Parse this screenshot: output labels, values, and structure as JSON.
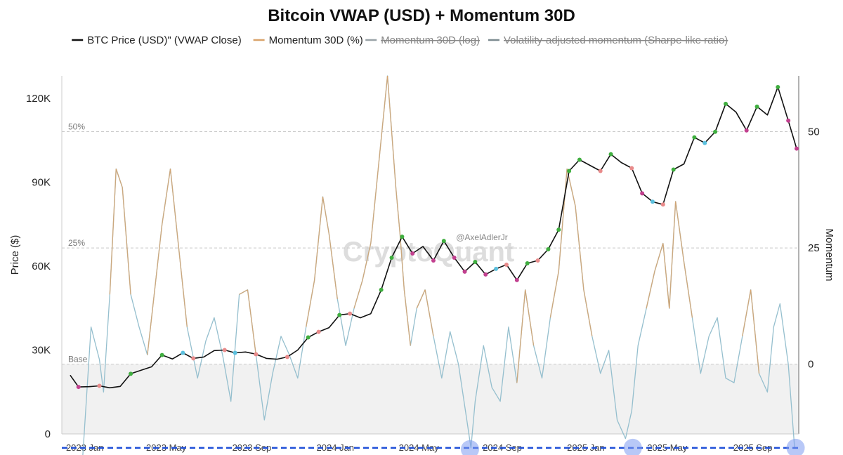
{
  "chart_data": {
    "type": "line",
    "title": "Bitcoin VWAP (USD) + Momentum 30D",
    "legend": [
      {
        "label": "BTC Price (USD)\" (VWAP Close)",
        "color": "#111111",
        "active": true
      },
      {
        "label": "Momentum 30D (%)",
        "color": "#d9a36b",
        "active": true
      },
      {
        "label": "Momentum 30D (log)",
        "color": "#9aa3a8",
        "active": false
      },
      {
        "label": "Volatility-adjusted momentum (Sharpe-like ratio)",
        "color": "#7d8b90",
        "active": false
      }
    ],
    "ylabel_left": "Price ($)",
    "ylabel_right": "Momentum",
    "ylim_left": [
      0,
      128000
    ],
    "ylim_right": [
      -15,
      62
    ],
    "left_ticks": [
      0,
      30000,
      60000,
      90000,
      120000
    ],
    "left_tick_labels": [
      "0",
      "30K",
      "60K",
      "90K",
      "120K"
    ],
    "right_ticks": [
      0,
      25,
      50
    ],
    "right_tick_labels": [
      "0",
      "25",
      "50"
    ],
    "x_ticks": [
      1.1,
      5.0,
      9.1,
      13.1,
      17.1,
      21.1,
      25.1,
      29.0,
      33.1
    ],
    "x_tick_labels": [
      "2023 Jan",
      "2023 May",
      "2023 Sep",
      "2024 Jan",
      "2024 May",
      "2024 Sep",
      "2025 Jan",
      "2025 May",
      "2025 Sep"
    ],
    "x_range": [
      0,
      35.3
    ],
    "reference_lines": [
      {
        "label": "50%",
        "value": 50
      },
      {
        "label": "25%",
        "value": 25
      },
      {
        "label": "Base",
        "value": 0
      }
    ],
    "blue_threshold": -18,
    "highlight_markers": [
      {
        "month": 19.55,
        "value": -18.3
      },
      {
        "month": 27.35,
        "value": -18.0
      },
      {
        "month": 35.15,
        "value": -18.0
      }
    ],
    "series": [
      {
        "name": "BTC Price (USD)",
        "axis": "left",
        "color": "#111111",
        "x": [
          0.4,
          0.8,
          1.3,
          1.8,
          2.3,
          2.8,
          3.3,
          3.8,
          4.3,
          4.8,
          5.3,
          5.8,
          6.3,
          6.8,
          7.3,
          7.8,
          8.3,
          8.8,
          9.3,
          9.8,
          10.3,
          10.8,
          11.3,
          11.8,
          12.3,
          12.8,
          13.3,
          13.8,
          14.3,
          14.8,
          15.3,
          15.8,
          16.3,
          16.8,
          17.3,
          17.8,
          18.3,
          18.8,
          19.3,
          19.8,
          20.3,
          20.8,
          21.3,
          21.8,
          22.3,
          22.8,
          23.3,
          23.8,
          24.3,
          24.8,
          25.3,
          25.8,
          26.3,
          26.8,
          27.3,
          27.8,
          28.3,
          28.8,
          29.3,
          29.8,
          30.3,
          30.8,
          31.3,
          31.8,
          32.3,
          32.8,
          33.3,
          33.8,
          34.3,
          34.8,
          35.2
        ],
        "y": [
          21000,
          16800,
          16900,
          17200,
          16500,
          17000,
          21500,
          22800,
          24000,
          28200,
          26800,
          29000,
          27000,
          27500,
          29800,
          30000,
          29000,
          29300,
          28500,
          27000,
          26700,
          27500,
          30000,
          34500,
          36500,
          38000,
          42500,
          43000,
          41500,
          43000,
          51500,
          63000,
          70500,
          64500,
          67000,
          62000,
          69000,
          63000,
          58000,
          61500,
          57000,
          59000,
          60500,
          55000,
          61000,
          62000,
          66000,
          73000,
          94000,
          98000,
          96000,
          94000,
          100000,
          97000,
          95000,
          86000,
          83000,
          82000,
          94500,
          96500,
          106000,
          104000,
          108000,
          118000,
          115000,
          108500,
          117000,
          114000,
          124000,
          112000,
          102000
        ]
      },
      {
        "name": "Momentum 30D (%)",
        "axis": "right",
        "color": "#d9a36b",
        "x": [
          1.0,
          1.4,
          1.8,
          2.0,
          2.3,
          2.6,
          2.9,
          3.3,
          3.7,
          4.1,
          4.5,
          4.8,
          5.2,
          5.6,
          6.0,
          6.5,
          6.9,
          7.3,
          7.7,
          8.1,
          8.5,
          8.9,
          9.3,
          9.7,
          10.1,
          10.5,
          10.9,
          11.3,
          11.7,
          12.1,
          12.5,
          12.8,
          13.2,
          13.6,
          14.0,
          14.4,
          14.8,
          15.2,
          15.6,
          16.0,
          16.2,
          16.4,
          16.7,
          17.0,
          17.4,
          17.8,
          18.2,
          18.6,
          19.0,
          19.4,
          19.6,
          19.8,
          20.2,
          20.6,
          21.0,
          21.4,
          21.8,
          22.2,
          22.6,
          23.0,
          23.4,
          23.8,
          24.2,
          24.6,
          25.0,
          25.4,
          25.8,
          26.2,
          26.6,
          27.0,
          27.3,
          27.6,
          28.0,
          28.4,
          28.8,
          29.1,
          29.4,
          29.8,
          30.2,
          30.6,
          31.0,
          31.4,
          31.8,
          32.2,
          32.6,
          33.0,
          33.4,
          33.8,
          34.1,
          34.4,
          34.8,
          35.1
        ],
        "y": [
          -20,
          8,
          1,
          -6,
          15,
          42,
          38,
          15,
          8,
          2,
          18,
          30,
          42,
          25,
          8,
          -3,
          5,
          10,
          2,
          -8,
          15,
          16,
          2,
          -12,
          -2,
          6,
          2,
          -3,
          8,
          18,
          36,
          28,
          14,
          4,
          12,
          18,
          26,
          44,
          62,
          38,
          28,
          16,
          4,
          12,
          16,
          6,
          -3,
          7,
          0,
          -12,
          -18,
          -8,
          4,
          -5,
          -8,
          8,
          -4,
          16,
          4,
          -3,
          10,
          20,
          42,
          34,
          16,
          6,
          -2,
          3,
          -12,
          -16,
          -10,
          4,
          12,
          20,
          26,
          12,
          35,
          22,
          10,
          -2,
          6,
          10,
          -3,
          -4,
          6,
          16,
          -2,
          -6,
          8,
          13,
          0,
          -18
        ]
      }
    ],
    "watermark": "CryptoQuant",
    "author": "@AxelAdlerJr"
  }
}
